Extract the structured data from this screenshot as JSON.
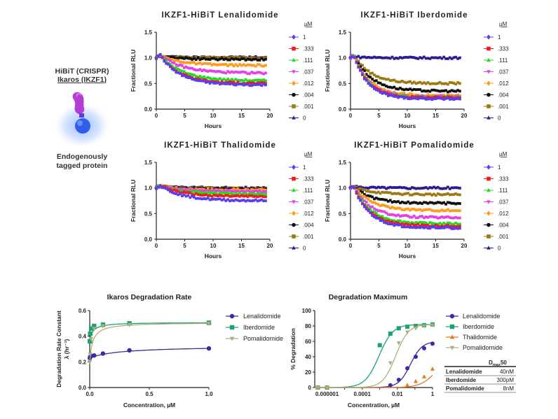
{
  "side": {
    "line1": "HiBiT (CRISPR)",
    "line2": "Ikaros (IKZF1)",
    "caption1": "Endogenously",
    "caption2": "tagged protein"
  },
  "colors": {
    "1": "#5b3cf0",
    ".333": "#ee1c1c",
    ".111": "#1fdc1f",
    ".037": "#e440e8",
    ".012": "#ff9a1f",
    ".004": "#111111",
    ".001": "#9b7a12",
    "0": "#2b1d8f",
    "lenalidomide": "#3a2aa8",
    "iberdomide": "#1aa36f",
    "thalidomide": "#e07b22",
    "pomalidomide": "#b2ac7e"
  },
  "legend_unit": "µM",
  "chart_data": [
    {
      "type": "scatter",
      "title": "IKZF1-HiBiT Lenalidomide",
      "xlabel": "Hours",
      "ylabel": "Fractional RLU",
      "xlim": [
        0,
        20
      ],
      "ylim": [
        0,
        1.5
      ],
      "xticks": [
        "0",
        "5",
        "10",
        "15",
        "20"
      ],
      "yticks": [
        "0.0",
        "0.5",
        "1.0",
        "1.5"
      ],
      "legend_title": "µM",
      "series": [
        {
          "name": "1",
          "plateau": 0.47,
          "peak": 1.07,
          "tau": 3.5
        },
        {
          "name": ".333",
          "plateau": 0.5,
          "peak": 1.07,
          "tau": 3.5
        },
        {
          "name": ".111",
          "plateau": 0.55,
          "peak": 1.07,
          "tau": 3.8
        },
        {
          "name": ".037",
          "plateau": 0.7,
          "peak": 1.06,
          "tau": 4.0
        },
        {
          "name": ".012",
          "plateau": 0.85,
          "peak": 1.05,
          "tau": 4.0
        },
        {
          "name": ".004",
          "plateau": 0.97,
          "peak": 1.04,
          "tau": 4.0
        },
        {
          "name": ".001",
          "plateau": 1.0,
          "peak": 1.03,
          "tau": 4.0
        },
        {
          "name": "0",
          "plateau": 1.01,
          "peak": 1.02,
          "tau": 4.0
        }
      ]
    },
    {
      "type": "scatter",
      "title": "IKZF1-HiBiT Iberdomide",
      "xlabel": "Hours",
      "ylabel": "Fractional RLU",
      "xlim": [
        0,
        20
      ],
      "ylim": [
        0,
        1.5
      ],
      "xticks": [
        "0",
        "5",
        "10",
        "15",
        "20"
      ],
      "yticks": [
        "0.0",
        "0.5",
        "1.0",
        "1.5"
      ],
      "legend_title": "µM",
      "series": [
        {
          "name": "1",
          "plateau": 0.2,
          "peak": 1.05,
          "tau": 2.5
        },
        {
          "name": ".333",
          "plateau": 0.22,
          "peak": 1.05,
          "tau": 2.5
        },
        {
          "name": ".111",
          "plateau": 0.23,
          "peak": 1.05,
          "tau": 2.5
        },
        {
          "name": ".037",
          "plateau": 0.24,
          "peak": 1.05,
          "tau": 2.6
        },
        {
          "name": ".012",
          "plateau": 0.26,
          "peak": 1.05,
          "tau": 2.8
        },
        {
          "name": ".004",
          "plateau": 0.35,
          "peak": 1.06,
          "tau": 3.0
        },
        {
          "name": ".001",
          "plateau": 0.5,
          "peak": 1.06,
          "tau": 3.0
        },
        {
          "name": "0",
          "plateau": 1.0,
          "peak": 1.02,
          "tau": 3.0
        }
      ]
    },
    {
      "type": "scatter",
      "title": "IKZF1-HiBiT Thalidomide",
      "xlabel": "Hours",
      "ylabel": "Fractional RLU",
      "xlim": [
        0,
        20
      ],
      "ylim": [
        0,
        1.5
      ],
      "xticks": [
        "0",
        "5",
        "10",
        "15",
        "20"
      ],
      "yticks": [
        "0.0",
        "0.5",
        "1.0",
        "1.5"
      ],
      "legend_title": "µM",
      "series": [
        {
          "name": "1",
          "plateau": 0.75,
          "peak": 1.05,
          "tau": 4.0
        },
        {
          "name": ".333",
          "plateau": 0.83,
          "peak": 1.05,
          "tau": 4.0
        },
        {
          "name": ".111",
          "plateau": 0.88,
          "peak": 1.05,
          "tau": 4.0
        },
        {
          "name": ".037",
          "plateau": 0.93,
          "peak": 1.04,
          "tau": 4.0
        },
        {
          "name": ".012",
          "plateau": 0.96,
          "peak": 1.04,
          "tau": 4.0
        },
        {
          "name": ".004",
          "plateau": 0.98,
          "peak": 1.03,
          "tau": 4.0
        },
        {
          "name": ".001",
          "plateau": 0.99,
          "peak": 1.03,
          "tau": 4.0
        },
        {
          "name": "0",
          "plateau": 1.0,
          "peak": 1.02,
          "tau": 4.0
        }
      ]
    },
    {
      "type": "scatter",
      "title": "IKZF1-HiBiT Pomalidomide",
      "xlabel": "Hours",
      "ylabel": "Fractional RLU",
      "xlim": [
        0,
        20
      ],
      "ylim": [
        0,
        1.5
      ],
      "xticks": [
        "0",
        "5",
        "10",
        "15",
        "20"
      ],
      "yticks": [
        "0.0",
        "0.5",
        "1.0",
        "1.5"
      ],
      "legend_title": "µM",
      "series": [
        {
          "name": "1",
          "plateau": 0.22,
          "peak": 1.02,
          "tau": 2.8
        },
        {
          "name": ".333",
          "plateau": 0.26,
          "peak": 1.02,
          "tau": 2.8
        },
        {
          "name": ".111",
          "plateau": 0.3,
          "peak": 1.02,
          "tau": 3.0
        },
        {
          "name": ".037",
          "plateau": 0.42,
          "peak": 1.02,
          "tau": 3.0
        },
        {
          "name": ".012",
          "plateau": 0.56,
          "peak": 1.02,
          "tau": 3.2
        },
        {
          "name": ".004",
          "plateau": 0.7,
          "peak": 1.02,
          "tau": 3.2
        },
        {
          "name": ".001",
          "plateau": 0.87,
          "peak": 1.02,
          "tau": 3.5
        },
        {
          "name": "0",
          "plateau": 1.0,
          "peak": 1.02,
          "tau": 3.5
        }
      ]
    },
    {
      "type": "scatter",
      "title": "Ikaros Degradation Rate",
      "xlabel": "Concentration, µM",
      "ylabel": "Degradation Rate Constant, λ (hr⁻¹)",
      "xlim": [
        0,
        1
      ],
      "ylim": [
        0,
        0.6
      ],
      "xticks": [
        "0.0",
        "0.5",
        "1.0"
      ],
      "yticks": [
        "0.0",
        "0.2",
        "0.4",
        "0.6"
      ],
      "legend": "right",
      "series": [
        {
          "name": "Lenalidomide",
          "x": [
            0.001,
            0.004,
            0.012,
            0.037,
            0.111,
            0.333,
            1.0
          ],
          "y": [
            0.23,
            0.24,
            0.245,
            0.25,
            0.265,
            0.29,
            0.305
          ]
        },
        {
          "name": "Iberdomide",
          "x": [
            0.001,
            0.004,
            0.012,
            0.037,
            0.111,
            0.333,
            1.0
          ],
          "y": [
            0.36,
            0.42,
            0.46,
            0.48,
            0.49,
            0.5,
            0.505
          ]
        },
        {
          "name": "Pomalidomide",
          "x": [
            0.001,
            0.004,
            0.012,
            0.037,
            0.111,
            0.333,
            1.0
          ],
          "y": [
            0.2,
            0.26,
            0.38,
            0.46,
            0.48,
            0.49,
            0.5
          ]
        }
      ]
    },
    {
      "type": "scatter",
      "title": "Degradation Maximum",
      "xlabel": "Concentration, µM",
      "ylabel": "% Degradation",
      "xscale": "log",
      "xlim": [
        2e-07,
        1
      ],
      "ylim": [
        0,
        100
      ],
      "xticks": [
        "0.000001",
        "0.0001",
        "0.01",
        "1"
      ],
      "yticks": [
        "0",
        "20",
        "40",
        "60",
        "80",
        "100"
      ],
      "legend": "right",
      "series": [
        {
          "name": "Lenalidomide",
          "x": [
            3e-07,
            1e-06,
            0.004,
            0.012,
            0.037,
            0.111,
            0.333,
            1.0
          ],
          "y": [
            0,
            0,
            3,
            10,
            25,
            40,
            51,
            57
          ]
        },
        {
          "name": "Iberdomide",
          "x": [
            3e-07,
            1e-06,
            0.001,
            0.004,
            0.012,
            0.037,
            0.111,
            0.333,
            1.0
          ],
          "y": [
            0,
            0,
            55,
            70,
            77,
            79,
            80,
            81,
            82
          ]
        },
        {
          "name": "Thalidomide",
          "x": [
            3e-07,
            1e-06,
            0.037,
            0.111,
            0.333,
            1.0
          ],
          "y": [
            0,
            0,
            3,
            8,
            14,
            24
          ]
        },
        {
          "name": "Pomalidomide",
          "x": [
            3e-07,
            1e-06,
            0.004,
            0.012,
            0.037,
            0.111,
            0.333,
            1.0
          ],
          "y": [
            0,
            0,
            32,
            58,
            72,
            77,
            80,
            81
          ]
        }
      ],
      "table": {
        "header": "Dmax50",
        "rows": [
          {
            "drug": "Lenalidomide",
            "value": "40nM"
          },
          {
            "drug": "Iberdomide",
            "value": "300pM"
          },
          {
            "drug": "Pomalidomide",
            "value": "8nM"
          }
        ]
      }
    }
  ]
}
